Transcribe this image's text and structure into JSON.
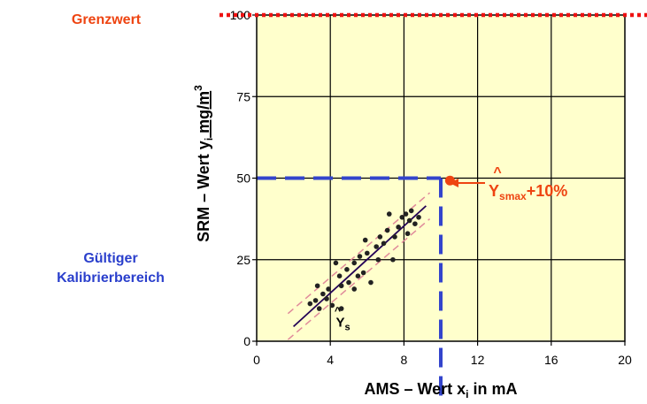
{
  "labels": {
    "limit": "Grenzwert",
    "range_line1": "Gültiger",
    "range_line2": "Kalibrierbereich"
  },
  "colors": {
    "plot_bg": "#ffffcc",
    "limit_line": "#ee1111",
    "range_dash": "#3344cc",
    "annotation": "#ee4411",
    "range_text": "#2a3fcc",
    "points": "#222222",
    "fit_line": "#220055",
    "band": "#e08a9a"
  },
  "chart_data": {
    "type": "scatter",
    "xlabel": {
      "main": "AMS – Wert x",
      "sub": "i",
      "rest": " in mA"
    },
    "ylabel": {
      "main": "SRM – Wert y",
      "sub": "i",
      "rest": "  mg/m",
      "sup": "3"
    },
    "xlim": [
      0,
      20
    ],
    "ylim": [
      0,
      100
    ],
    "x_ticks": [
      0,
      4,
      8,
      12,
      16,
      20
    ],
    "y_ticks": [
      0,
      25,
      50,
      75,
      100
    ],
    "grid": true,
    "limit_value": 100,
    "range_limit": {
      "x": 10,
      "y": 50
    },
    "fit_line": {
      "x": [
        2.0,
        9.2
      ],
      "y": [
        4.5,
        41.5
      ]
    },
    "band_offset": 4,
    "fit_label": {
      "hat": "^",
      "text": "Y",
      "sub": "s",
      "x": 4.3,
      "y": 5.5
    },
    "max_point": {
      "x": 10.5,
      "y": 49
    },
    "max_label": {
      "hat": "^",
      "text": "Y",
      "sub": "smax",
      "rest": "+10%"
    },
    "points": [
      {
        "x": 2.9,
        "y": 11.5
      },
      {
        "x": 3.2,
        "y": 12.5
      },
      {
        "x": 3.3,
        "y": 17
      },
      {
        "x": 3.4,
        "y": 10
      },
      {
        "x": 3.6,
        "y": 14.5
      },
      {
        "x": 3.8,
        "y": 13
      },
      {
        "x": 3.9,
        "y": 16
      },
      {
        "x": 4.1,
        "y": 11
      },
      {
        "x": 4.3,
        "y": 24
      },
      {
        "x": 4.5,
        "y": 20
      },
      {
        "x": 4.6,
        "y": 17
      },
      {
        "x": 4.6,
        "y": 10
      },
      {
        "x": 4.9,
        "y": 22
      },
      {
        "x": 5.0,
        "y": 18
      },
      {
        "x": 5.3,
        "y": 16
      },
      {
        "x": 5.3,
        "y": 24
      },
      {
        "x": 5.5,
        "y": 20
      },
      {
        "x": 5.6,
        "y": 26
      },
      {
        "x": 5.8,
        "y": 21
      },
      {
        "x": 5.9,
        "y": 31
      },
      {
        "x": 6.0,
        "y": 27
      },
      {
        "x": 6.2,
        "y": 18
      },
      {
        "x": 6.5,
        "y": 29
      },
      {
        "x": 6.6,
        "y": 25
      },
      {
        "x": 6.7,
        "y": 32
      },
      {
        "x": 6.9,
        "y": 30
      },
      {
        "x": 7.1,
        "y": 34
      },
      {
        "x": 7.2,
        "y": 39
      },
      {
        "x": 7.4,
        "y": 25
      },
      {
        "x": 7.5,
        "y": 32
      },
      {
        "x": 7.7,
        "y": 35
      },
      {
        "x": 7.9,
        "y": 38
      },
      {
        "x": 8.1,
        "y": 39
      },
      {
        "x": 8.2,
        "y": 33
      },
      {
        "x": 8.3,
        "y": 37
      },
      {
        "x": 8.4,
        "y": 40
      },
      {
        "x": 8.6,
        "y": 36
      },
      {
        "x": 8.8,
        "y": 38
      }
    ]
  }
}
